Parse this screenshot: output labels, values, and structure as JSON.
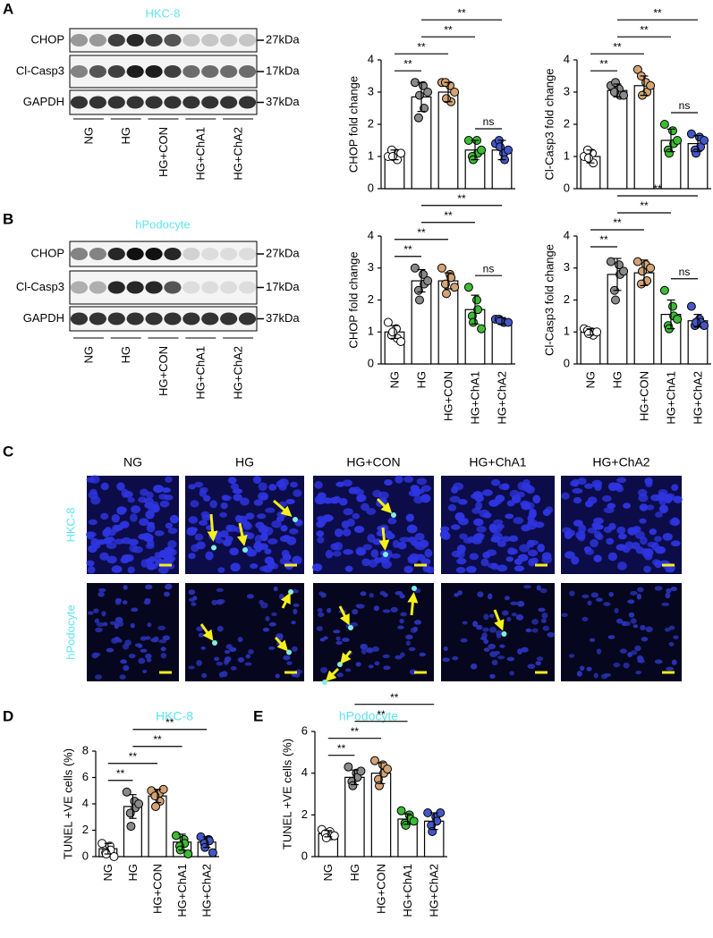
{
  "figure": {
    "panel_letters": [
      "A",
      "B",
      "C",
      "D",
      "E"
    ]
  },
  "blots": [
    {
      "cell_line": "HKC-8",
      "rows": [
        {
          "protein": "CHOP",
          "size": "27kDa"
        },
        {
          "protein": "Cl-Casp3",
          "size": "17kDa"
        },
        {
          "protein": "GAPDH",
          "size": "37kDa"
        }
      ],
      "lanes": [
        "NG",
        "HG",
        "HG+CON",
        "HG+ChA1",
        "HG+ChA2"
      ]
    },
    {
      "cell_line": "hPodocyte",
      "rows": [
        {
          "protein": "CHOP",
          "size": "27kDa"
        },
        {
          "protein": "Cl-Casp3",
          "size": "17kDa"
        },
        {
          "protein": "GAPDH",
          "size": "37kDa"
        }
      ],
      "lanes": [
        "NG",
        "HG",
        "HG+CON",
        "HG+ChA1",
        "HG+ChA2"
      ]
    }
  ],
  "images": {
    "columns": [
      "NG",
      "HG",
      "HG+CON",
      "HG+ChA1",
      "HG+ChA2"
    ],
    "rows": [
      "HKC-8",
      "hPodocyte"
    ]
  },
  "chart_data": [
    {
      "type": "bar",
      "ylabel": "CHOP fold change",
      "categories": [
        null,
        null,
        null,
        null,
        null
      ],
      "colors": [
        "#ffffff",
        "#8a8a8a",
        "#d4a373",
        "#3dbb35",
        "#4457c8"
      ],
      "values": [
        1.05,
        2.85,
        3.0,
        1.2,
        1.2
      ],
      "errors": [
        0.15,
        0.45,
        0.3,
        0.3,
        0.3
      ],
      "points": [
        [
          1.0,
          1.1,
          0.9,
          1.2,
          1.0,
          1.1
        ],
        [
          3.3,
          3.2,
          2.5,
          2.2,
          2.9,
          3.0
        ],
        [
          3.3,
          3.2,
          2.7,
          3.3,
          2.8,
          3.0
        ],
        [
          1.5,
          1.5,
          1.1,
          1.0,
          0.9,
          1.2
        ],
        [
          1.4,
          1.1,
          0.9,
          1.5,
          1.3,
          1.2
        ]
      ],
      "ylim": [
        0,
        4
      ],
      "yticks": [
        0,
        1,
        2,
        3,
        4
      ],
      "comparisons": [
        {
          "groups": [
            0,
            1
          ],
          "label": "**"
        },
        {
          "groups": [
            0,
            2
          ],
          "label": "**"
        },
        {
          "groups": [
            1,
            3
          ],
          "label": "**"
        },
        {
          "groups": [
            1,
            4
          ],
          "label": "**"
        },
        {
          "groups": [
            3,
            4
          ],
          "label": "ns"
        }
      ]
    },
    {
      "type": "bar",
      "ylabel": "Cl-Casp3 fold change",
      "categories": [
        null,
        null,
        null,
        null,
        null
      ],
      "colors": [
        "#ffffff",
        "#8a8a8a",
        "#d4a373",
        "#3dbb35",
        "#4457c8"
      ],
      "values": [
        1.0,
        3.05,
        3.2,
        1.5,
        1.4
      ],
      "errors": [
        0.2,
        0.2,
        0.3,
        0.35,
        0.25
      ],
      "points": [
        [
          1.0,
          1.1,
          0.8,
          1.2,
          0.95
        ],
        [
          3.2,
          3.1,
          2.9,
          3.0,
          3.3,
          2.9
        ],
        [
          3.7,
          3.3,
          3.0,
          3.5,
          2.9,
          3.2
        ],
        [
          2.0,
          1.8,
          1.4,
          1.2,
          1.1,
          1.5
        ],
        [
          1.7,
          1.6,
          1.3,
          1.2,
          1.1,
          1.5
        ]
      ],
      "ylim": [
        0,
        4
      ],
      "yticks": [
        0,
        1,
        2,
        3,
        4
      ],
      "comparisons": [
        {
          "groups": [
            0,
            1
          ],
          "label": "**"
        },
        {
          "groups": [
            0,
            2
          ],
          "label": "**"
        },
        {
          "groups": [
            1,
            3
          ],
          "label": "**"
        },
        {
          "groups": [
            1,
            4
          ],
          "label": "**"
        },
        {
          "groups": [
            3,
            4
          ],
          "label": "ns"
        }
      ]
    },
    {
      "type": "bar",
      "ylabel": "CHOP fold change",
      "categories": [
        "NG",
        "HG",
        "HG+CON",
        "HG+ChA1",
        "HG+ChA2"
      ],
      "colors": [
        "#ffffff",
        "#8a8a8a",
        "#d4a373",
        "#3dbb35",
        "#4457c8"
      ],
      "values": [
        1.0,
        2.6,
        2.6,
        1.7,
        1.35
      ],
      "errors": [
        0.2,
        0.35,
        0.25,
        0.45,
        0.1
      ],
      "points": [
        [
          1.3,
          1.1,
          0.8,
          0.9,
          1.0,
          0.7
        ],
        [
          3.0,
          2.8,
          2.5,
          2.3,
          2.0,
          2.6
        ],
        [
          3.0,
          2.8,
          2.7,
          2.5,
          2.2,
          2.4
        ],
        [
          2.4,
          2.0,
          1.7,
          1.5,
          1.3,
          1.1
        ],
        [
          1.4,
          1.3,
          1.3,
          1.4,
          1.35,
          1.3
        ]
      ],
      "ylim": [
        0,
        4
      ],
      "yticks": [
        0,
        1,
        2,
        3,
        4
      ],
      "comparisons": [
        {
          "groups": [
            0,
            1
          ],
          "label": "**"
        },
        {
          "groups": [
            0,
            2
          ],
          "label": "**"
        },
        {
          "groups": [
            1,
            3
          ],
          "label": "**"
        },
        {
          "groups": [
            1,
            4
          ],
          "label": "**"
        },
        {
          "groups": [
            3,
            4
          ],
          "label": "ns"
        }
      ]
    },
    {
      "type": "bar",
      "ylabel": "Cl-Casp3 fold change",
      "categories": [
        "NG",
        "HG",
        "HG+CON",
        "HG+ChA1",
        "HG+ChA2"
      ],
      "colors": [
        "#ffffff",
        "#8a8a8a",
        "#d4a373",
        "#3dbb35",
        "#4457c8"
      ],
      "values": [
        1.0,
        2.8,
        2.85,
        1.55,
        1.35
      ],
      "errors": [
        0.1,
        0.5,
        0.4,
        0.45,
        0.2
      ],
      "points": [
        [
          1.1,
          1.0,
          0.9,
          1.05,
          0.95,
          1.0
        ],
        [
          3.2,
          3.1,
          2.8,
          2.3,
          2.0,
          2.9
        ],
        [
          3.2,
          3.1,
          2.6,
          2.5,
          2.9,
          3.0
        ],
        [
          2.3,
          1.8,
          1.5,
          1.2,
          1.1,
          1.4
        ],
        [
          1.8,
          1.4,
          1.3,
          1.2,
          1.3,
          1.2
        ]
      ],
      "ylim": [
        0,
        4
      ],
      "yticks": [
        0,
        1,
        2,
        3,
        4
      ],
      "comparisons": [
        {
          "groups": [
            0,
            1
          ],
          "label": "**"
        },
        {
          "groups": [
            0,
            2
          ],
          "label": "**"
        },
        {
          "groups": [
            1,
            3
          ],
          "label": "**"
        },
        {
          "groups": [
            1,
            4
          ],
          "label": "**"
        },
        {
          "groups": [
            3,
            4
          ],
          "label": "ns"
        }
      ]
    },
    {
      "type": "bar",
      "title": "HKC-8",
      "ylabel": "TUNEL +VE cells (%)",
      "categories": [
        "NG",
        "HG",
        "HG+CON",
        "HG+ChA1",
        "HG+ChA2"
      ],
      "colors": [
        "#ffffff",
        "#8a8a8a",
        "#d4a373",
        "#3dbb35",
        "#4457c8"
      ],
      "values": [
        0.6,
        3.8,
        4.6,
        1.1,
        1.1
      ],
      "errors": [
        0.4,
        0.9,
        0.5,
        0.6,
        0.4
      ],
      "points": [
        [
          1.0,
          0.8,
          0.5,
          0.3,
          0.2,
          0.0
        ],
        [
          4.9,
          4.2,
          3.7,
          3.3,
          2.3,
          4.0
        ],
        [
          5.0,
          4.8,
          4.2,
          4.6,
          3.8,
          5.1
        ],
        [
          1.6,
          1.3,
          1.0,
          0.8,
          0.5,
          0.2
        ],
        [
          1.5,
          1.3,
          1.2,
          1.0,
          0.7,
          0.3
        ]
      ],
      "ylim": [
        0,
        8
      ],
      "yticks": [
        0,
        2,
        4,
        6,
        8
      ],
      "comparisons": [
        {
          "groups": [
            0,
            1
          ],
          "label": "**"
        },
        {
          "groups": [
            0,
            2
          ],
          "label": "**"
        },
        {
          "groups": [
            1,
            3
          ],
          "label": "**"
        },
        {
          "groups": [
            1,
            4
          ],
          "label": "**"
        }
      ]
    },
    {
      "type": "bar",
      "title": "hPodocyte",
      "ylabel": "TUNEL +VE cells (%)",
      "categories": [
        "NG",
        "HG",
        "HG+CON",
        "HG+ChA1",
        "HG+ChA2"
      ],
      "colors": [
        "#ffffff",
        "#8a8a8a",
        "#d4a373",
        "#3dbb35",
        "#4457c8"
      ],
      "values": [
        1.1,
        3.8,
        4.0,
        1.8,
        1.7
      ],
      "errors": [
        0.15,
        0.35,
        0.5,
        0.25,
        0.4
      ],
      "points": [
        [
          1.3,
          1.2,
          1.0,
          1.1,
          0.9,
          1.0
        ],
        [
          4.3,
          4.0,
          3.8,
          3.6,
          3.4,
          4.1
        ],
        [
          4.6,
          4.4,
          4.0,
          3.7,
          3.4,
          4.2
        ],
        [
          2.2,
          2.0,
          1.8,
          1.6,
          1.5,
          1.7
        ],
        [
          2.1,
          1.9,
          1.7,
          1.5,
          1.2,
          2.1
        ]
      ],
      "ylim": [
        0,
        6
      ],
      "yticks": [
        0,
        2,
        4,
        6
      ],
      "comparisons": [
        {
          "groups": [
            0,
            1
          ],
          "label": "**"
        },
        {
          "groups": [
            0,
            2
          ],
          "label": "**"
        },
        {
          "groups": [
            1,
            3
          ],
          "label": "**"
        },
        {
          "groups": [
            1,
            4
          ],
          "label": "**"
        }
      ]
    }
  ]
}
